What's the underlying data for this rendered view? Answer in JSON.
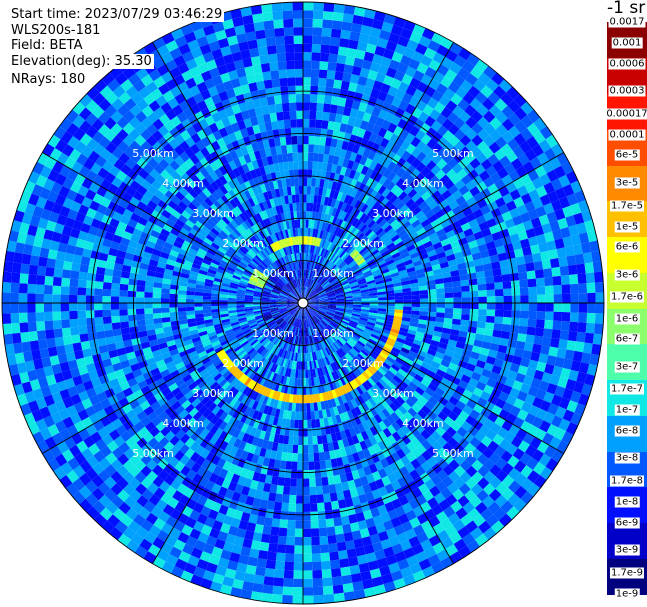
{
  "header": {
    "start_time": "Start time: 2023/07/29 03:46:29",
    "instrument": "WLS200s-181",
    "field": "Field: BETA",
    "elevation": "Elevation(deg): 35.30",
    "nrays": "NRays: 180"
  },
  "colorbar": {
    "unit_label": "-1 sr",
    "ticks": [
      "0.0017",
      "0.001",
      "0.0006",
      "0.0003",
      "0.00017",
      "0.0001",
      "6e-5",
      "3e-5",
      "1.7e-5",
      "1e-5",
      "6e-6",
      "3e-6",
      "1.7e-6",
      "1e-6",
      "6e-7",
      "3e-7",
      "1.7e-7",
      "1e-7",
      "6e-8",
      "3e-8",
      "1.7e-8",
      "1e-8",
      "6e-9",
      "3e-9",
      "1.7e-9",
      "1e-9"
    ]
  },
  "chart_data": {
    "type": "polar_ppi",
    "field": "BETA",
    "units": "sr^-1",
    "elevation_deg": 35.3,
    "nrays": 180,
    "range_rings_km": [
      1,
      2,
      3,
      4,
      5
    ],
    "ring_labels": [
      "1.00km",
      "2.00km",
      "3.00km",
      "4.00km",
      "5.00km"
    ],
    "max_range_km": 7.1,
    "spokes_deg": [
      0,
      30,
      60,
      90,
      120,
      150,
      180,
      210,
      240,
      270,
      300,
      330
    ],
    "color_scale": "log",
    "value_range": [
      1e-09,
      0.0017
    ],
    "background_beta": 3e-08,
    "features": [
      {
        "name": "aerosol-ring-bright",
        "range_km": 2.3,
        "azimuth_from_deg": 95,
        "azimuth_to_deg": 240,
        "beta": 1e-05
      },
      {
        "name": "aerosol-ring-faint-n",
        "range_km": 1.55,
        "azimuth_from_deg": 330,
        "azimuth_to_deg": 15,
        "beta": 3e-06
      },
      {
        "name": "aerosol-patch-ne",
        "range_km": 1.7,
        "azimuth_from_deg": 45,
        "azimuth_to_deg": 55,
        "beta": 1e-06
      },
      {
        "name": "aerosol-patch-w",
        "range_km": 1.2,
        "azimuth_from_deg": 290,
        "azimuth_to_deg": 305,
        "beta": 1e-06
      }
    ],
    "colors": [
      "#00007f",
      "#0000c8",
      "#0010ff",
      "#0058ff",
      "#00a0ff",
      "#10e8e6",
      "#4dffaa",
      "#8bff6c",
      "#c8ff2f",
      "#ffff00",
      "#ffc000",
      "#ff8a00",
      "#ff4e00",
      "#ff1500",
      "#c80000",
      "#8b0000"
    ]
  }
}
